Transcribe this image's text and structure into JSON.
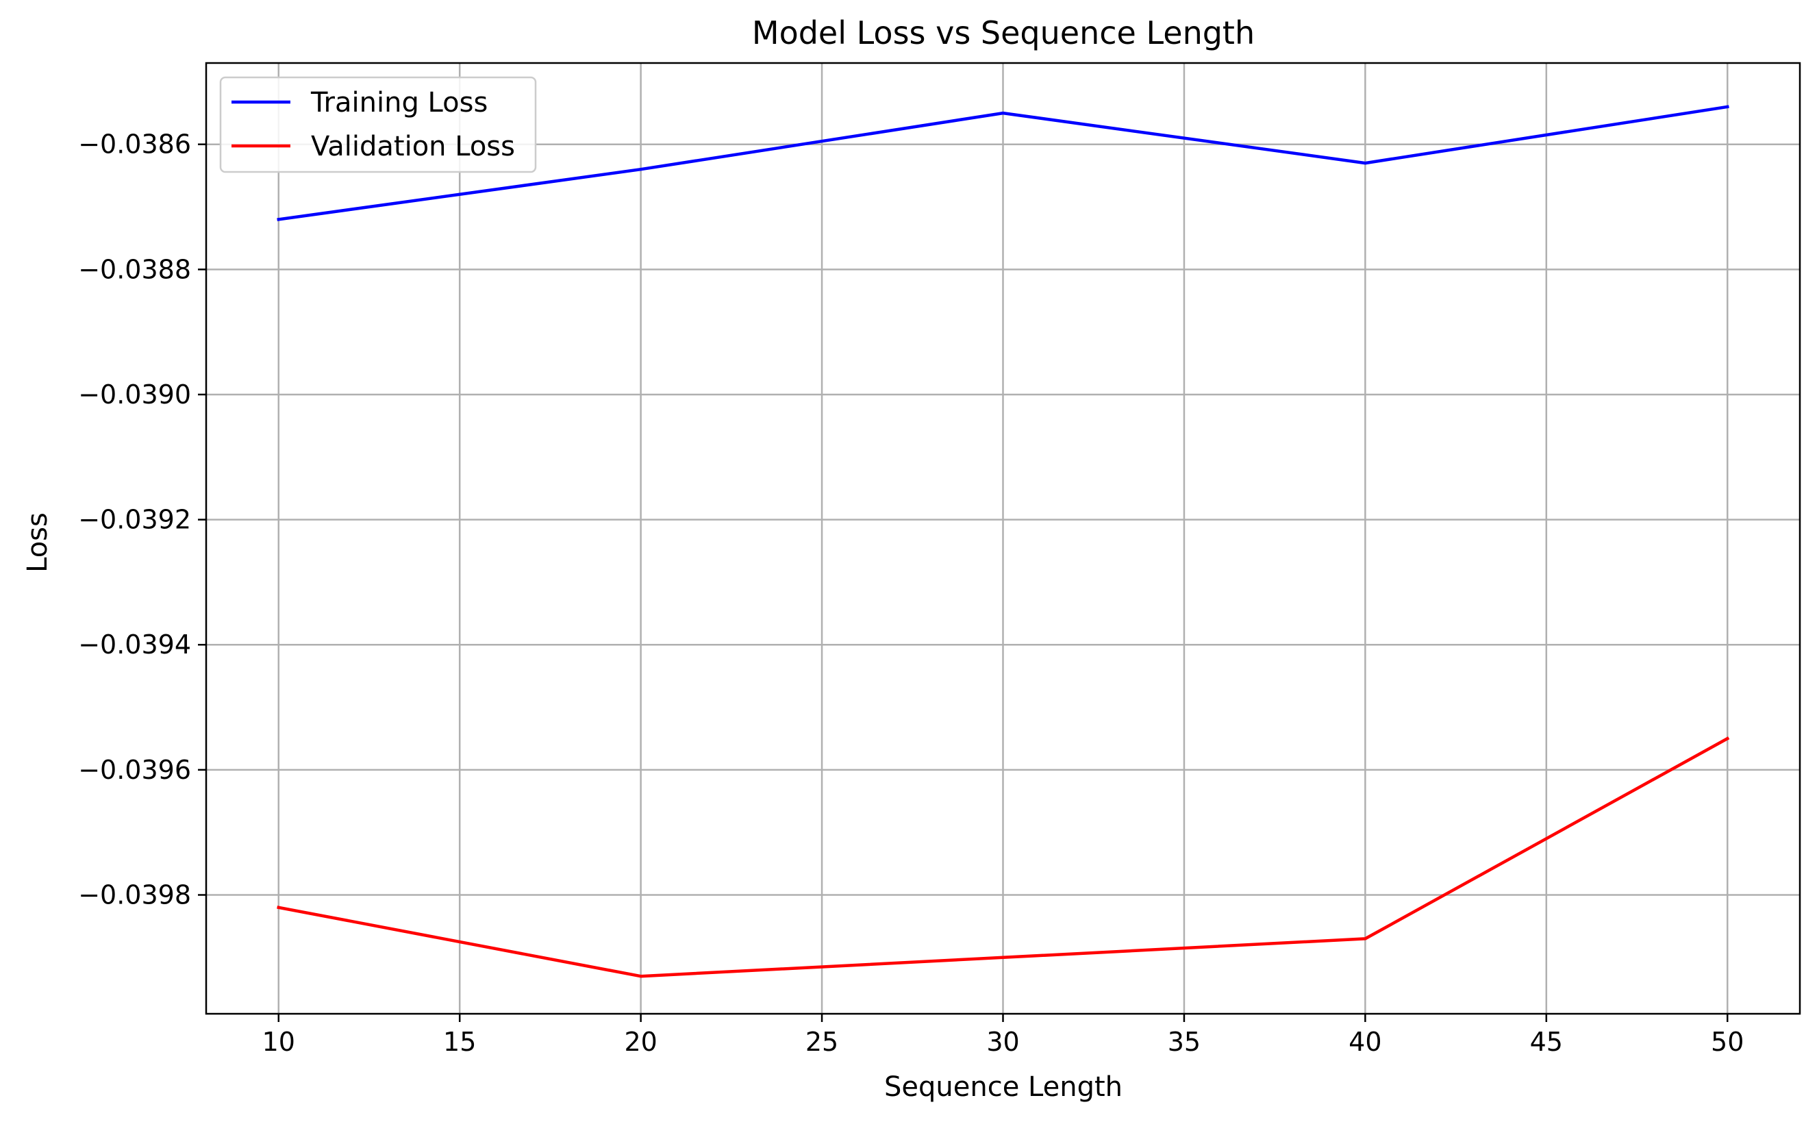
{
  "chart_data": {
    "type": "line",
    "title": "Model Loss vs Sequence Length",
    "xlabel": "Sequence Length",
    "ylabel": "Loss",
    "x": [
      10,
      20,
      30,
      40,
      50
    ],
    "xlim": [
      8.0,
      52.0
    ],
    "ylim": [
      -0.03999,
      -0.03847
    ],
    "xticks": [
      10,
      15,
      20,
      25,
      30,
      35,
      40,
      45,
      50
    ],
    "xtick_labels": [
      "10",
      "15",
      "20",
      "25",
      "30",
      "35",
      "40",
      "45",
      "50"
    ],
    "yticks": [
      -0.0398,
      -0.0396,
      -0.0394,
      -0.0392,
      -0.039,
      -0.0388,
      -0.0386
    ],
    "ytick_labels": [
      "−0.0398",
      "−0.0396",
      "−0.0394",
      "−0.0392",
      "−0.0390",
      "−0.0388",
      "−0.0386"
    ],
    "grid": true,
    "legend_position": "upper-left",
    "series": [
      {
        "name": "Training Loss",
        "color": "#0000ff",
        "values": [
          -0.03872,
          -0.03864,
          -0.03855,
          -0.03863,
          -0.03854
        ]
      },
      {
        "name": "Validation Loss",
        "color": "#ff0000",
        "values": [
          -0.03982,
          -0.03993,
          -0.0399,
          -0.03987,
          -0.03955
        ]
      }
    ]
  }
}
